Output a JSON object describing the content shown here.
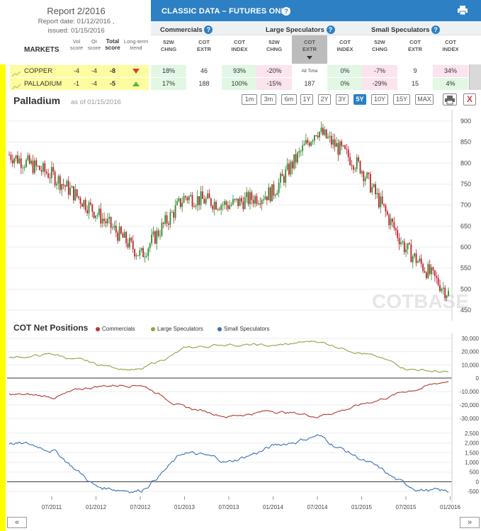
{
  "report": {
    "title": "Report 2/2016",
    "report_date": "Report date: 01/12/2016 ,",
    "issued": "issued: 01/15/2016"
  },
  "markets_label": "MARKETS",
  "score_headers": {
    "vol": [
      "Vol",
      "score"
    ],
    "oi": [
      "OI",
      "score"
    ],
    "total": [
      "Total",
      "score"
    ],
    "trend": [
      "Long-term",
      "trend"
    ]
  },
  "header": {
    "title": "CLASSIC DATA – FUTURES ONLY",
    "groups": [
      "Commercials",
      "Large Speculators",
      "Small Speculators"
    ],
    "sub": [
      [
        "52W",
        "CHNG"
      ],
      [
        "COT",
        "EXTR"
      ],
      [
        "COT",
        "INDEX"
      ],
      [
        "52W",
        "CHNG"
      ],
      [
        "COT",
        "EXTR"
      ],
      [
        "COT",
        "INDEX"
      ],
      [
        "52W",
        "CHNG"
      ],
      [
        "COT",
        "EXTR"
      ],
      [
        "COT",
        "INDEX"
      ]
    ]
  },
  "markets": [
    {
      "name": "COPPER",
      "vol": "-4",
      "oi": "-4",
      "total": "-8",
      "trend": "down",
      "cells": [
        "18%",
        "46",
        "93%",
        "-20%",
        "All Time",
        "0%",
        "-7%",
        "9",
        "34%"
      ],
      "tones": [
        "g",
        "",
        "g",
        "p",
        "",
        "g",
        "p",
        "",
        "p"
      ]
    },
    {
      "name": "PALLADIUM",
      "vol": "-1",
      "oi": "-4",
      "total": "-5",
      "trend": "up",
      "cells": [
        "17%",
        "188",
        "100%",
        "-15%",
        "187",
        "0%",
        "-29%",
        "15",
        "4%"
      ],
      "tones": [
        "g",
        "",
        "g",
        "p",
        "",
        "g",
        "p",
        "",
        "g"
      ]
    }
  ],
  "chart": {
    "name": "Palladium",
    "as_of": "as of 01/15/2016",
    "ranges": [
      "1m",
      "3m",
      "6m",
      "1Y",
      "2Y",
      "3Y",
      "5Y",
      "10Y",
      "15Y",
      "MAX"
    ],
    "active_range": "5Y",
    "close_label": "X",
    "watermark": "COTBASE",
    "net_title": "COT Net Positions",
    "legend": [
      {
        "name": "Commercials",
        "color": "#b03a2e"
      },
      {
        "name": "Large Speculators",
        "color": "#8aa63f"
      },
      {
        "name": "Small Speculators",
        "color": "#3d6fb5"
      }
    ],
    "x_labels": [
      "07/2011",
      "01/2012",
      "07/2012",
      "01/2013",
      "07/2013",
      "01/2014",
      "07/2014",
      "01/2015",
      "07/2015",
      "01/2016"
    ],
    "price_ticks": [
      "900",
      "850",
      "800",
      "750",
      "700",
      "650",
      "600",
      "550",
      "500",
      "450"
    ],
    "large_ticks": [
      "30,000",
      "20,000",
      "10,000",
      "0"
    ],
    "comm_ticks": [
      "-10,000",
      "-20,000",
      "-30,000"
    ],
    "small_ticks": [
      "2,500",
      "2,000",
      "1,500",
      "1,000",
      "500",
      "0",
      "-500"
    ]
  },
  "chart_data": {
    "type": "line",
    "x": [
      "2011-01",
      "2011-07",
      "2012-01",
      "2012-07",
      "2013-01",
      "2013-07",
      "2014-01",
      "2014-07",
      "2015-01",
      "2015-07",
      "2016-01"
    ],
    "price": [
      820,
      770,
      680,
      580,
      720,
      700,
      730,
      880,
      790,
      600,
      490
    ],
    "large_speculators": [
      15000,
      18000,
      10000,
      6000,
      22000,
      26000,
      24000,
      28000,
      20000,
      8000,
      4000
    ],
    "commercials": [
      -12000,
      -14000,
      -6000,
      -4000,
      -22000,
      -28000,
      -24000,
      -28000,
      -20000,
      -10000,
      -2000
    ],
    "small_speculators": [
      2000,
      1700,
      -300,
      -400,
      1500,
      1000,
      1800,
      2400,
      1200,
      -200,
      -600
    ]
  },
  "nav": {
    "prev": "«",
    "next": "»"
  }
}
